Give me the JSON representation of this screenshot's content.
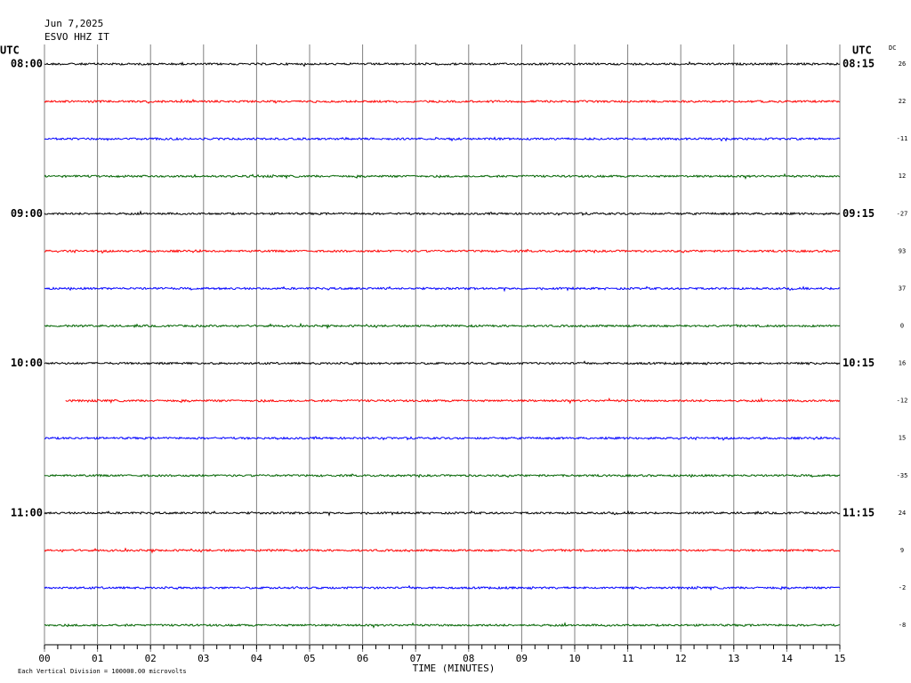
{
  "chart_data": {
    "type": "helicorder",
    "title": "Jun 7,2025",
    "subtitle": "ESVO HHZ IT",
    "left_axis_label": "UTC",
    "right_axis_label": "UTC",
    "dc_label": "DC",
    "xlabel": "TIME (MINUTES)",
    "footnote": "Each Vertical Division = 100000.00 microvolts",
    "xlim": [
      0,
      15
    ],
    "xticks": [
      {
        "value": 0,
        "label": "00"
      },
      {
        "value": 1,
        "label": "01"
      },
      {
        "value": 2,
        "label": "02"
      },
      {
        "value": 3,
        "label": "03"
      },
      {
        "value": 4,
        "label": "04"
      },
      {
        "value": 5,
        "label": "05"
      },
      {
        "value": 6,
        "label": "06"
      },
      {
        "value": 7,
        "label": "07"
      },
      {
        "value": 8,
        "label": "08"
      },
      {
        "value": 9,
        "label": "09"
      },
      10,
      11,
      12,
      13,
      14,
      15
    ],
    "rows": [
      {
        "color": "#000000",
        "dc": 26,
        "left_label": "08:00",
        "right_label": "08:15"
      },
      {
        "color": "#ff0000",
        "dc": 22
      },
      {
        "color": "#0000ff",
        "dc": -11
      },
      {
        "color": "#006400",
        "dc": 12
      },
      {
        "color": "#000000",
        "dc": -27,
        "left_label": "09:00",
        "right_label": "09:15"
      },
      {
        "color": "#ff0000",
        "dc": 93
      },
      {
        "color": "#0000ff",
        "dc": 37
      },
      {
        "color": "#006400",
        "dc": 0
      },
      {
        "color": "#000000",
        "dc": 16,
        "left_label": "10:00",
        "right_label": "10:15"
      },
      {
        "color": "#ff0000",
        "dc": -12,
        "start": 0.4
      },
      {
        "color": "#0000ff",
        "dc": 15
      },
      {
        "color": "#006400",
        "dc": -35
      },
      {
        "color": "#000000",
        "dc": 24,
        "left_label": "11:00",
        "right_label": "11:15"
      },
      {
        "color": "#ff0000",
        "dc": 9
      },
      {
        "color": "#0000ff",
        "dc": -2
      },
      {
        "color": "#006400",
        "dc": -8
      }
    ]
  }
}
